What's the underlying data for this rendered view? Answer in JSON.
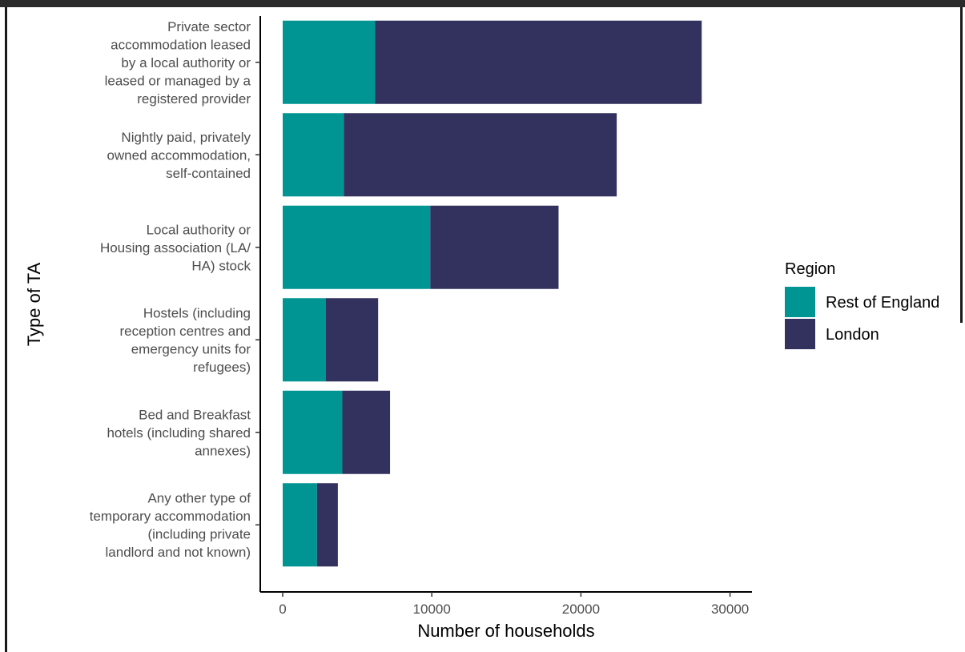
{
  "chart_data": {
    "type": "bar",
    "orientation": "horizontal",
    "stacked": true,
    "title": "",
    "xlabel": "Number of households",
    "ylabel": "Type of TA",
    "xlim": [
      0,
      32000
    ],
    "x_ticks": [
      0,
      10000,
      20000,
      30000
    ],
    "x_tick_labels": [
      "0",
      "10000",
      "20000",
      "30000"
    ],
    "categories": [
      [
        "Private sector",
        "accommodation leased",
        "by a local authority or",
        "leased or managed by a",
        "registered provider"
      ],
      [
        "Nightly paid, privately",
        "owned accommodation,",
        "self-contained"
      ],
      [
        "Local authority or",
        "Housing association (LA/",
        "HA) stock"
      ],
      [
        "Hostels (including",
        "reception centres and",
        "emergency units for",
        "refugees)"
      ],
      [
        "Bed and Breakfast",
        "hotels (including shared",
        "annexes)"
      ],
      [
        "Any other type of",
        "temporary accommodation",
        "(including private",
        "landlord and not known)"
      ]
    ],
    "series": [
      {
        "name": "Rest of England",
        "color": "#009593",
        "values": [
          6200,
          4100,
          9900,
          2900,
          4000,
          2300
        ]
      },
      {
        "name": "London",
        "color": "#33325f",
        "values": [
          21900,
          18300,
          8600,
          3500,
          3200,
          1400
        ]
      }
    ],
    "legend": {
      "title": "Region",
      "position": "right"
    },
    "grid": false
  }
}
